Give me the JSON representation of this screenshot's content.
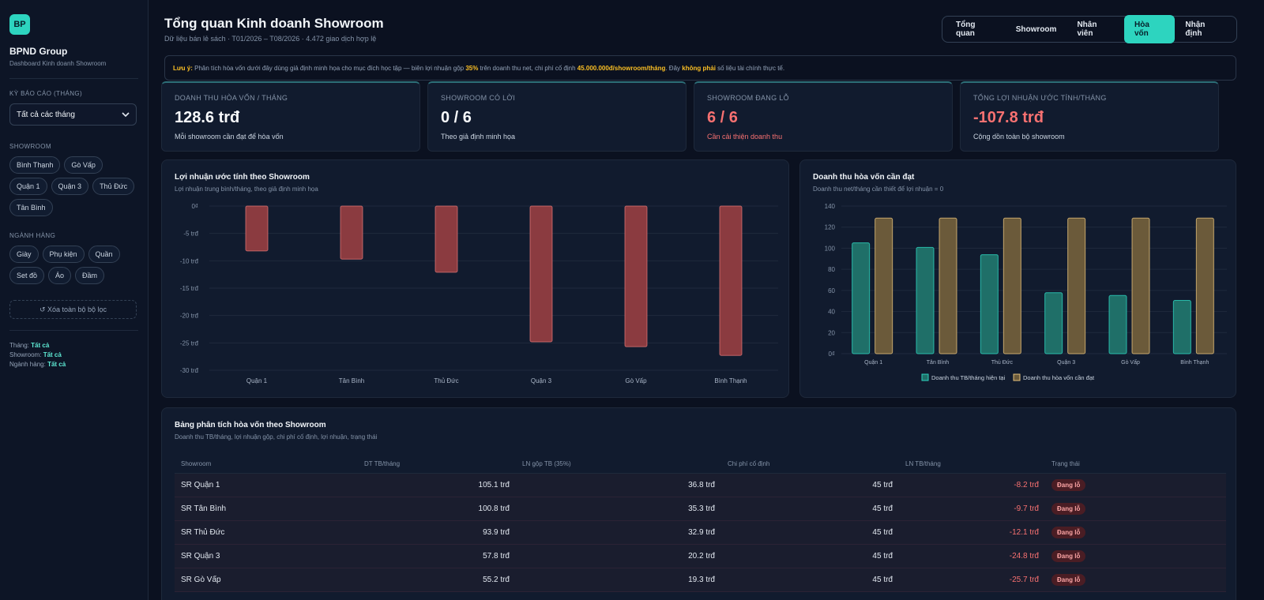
{
  "sidebar": {
    "logo": "BP",
    "brand": "BPND Group",
    "brand_sub": "Dashboard Kinh doanh Showroom",
    "period_label": "KỲ BÁO CÁO (THÁNG)",
    "period_value": "Tất cả các tháng",
    "showroom_label": "SHOWROOM",
    "showrooms": [
      "Bình Thạnh",
      "Gò Vấp",
      "Quận 1",
      "Quận 3",
      "Thủ Đức",
      "Tân Bình"
    ],
    "category_label": "NGÀNH HÀNG",
    "categories": [
      "Giày",
      "Phụ kiện",
      "Quần",
      "Set đồ",
      "Áo",
      "Đầm"
    ],
    "clear_label": "↺ Xóa toàn bộ bộ lọc",
    "summary": [
      {
        "label": "Tháng:",
        "value": "Tất cả"
      },
      {
        "label": "Showroom:",
        "value": "Tất cả"
      },
      {
        "label": "Ngành hàng:",
        "value": "Tất cả"
      }
    ]
  },
  "header": {
    "title": "Tổng quan Kinh doanh Showroom",
    "subtitle": "Dữ liệu bán lẻ sách · T01/2026 – T08/2026 · 4.472 giao dịch hợp lệ",
    "tabs": [
      "Tổng quan",
      "Showroom",
      "Nhân viên",
      "Hòa vốn",
      "Nhận định"
    ],
    "active_tab": "Hòa vốn"
  },
  "note": {
    "lead": "Lưu ý:",
    "text1": " Phân tích hòa vốn dưới đây dùng giả định minh họa cho mục đích học tập — biên lợi nhuận gộp ",
    "margin": "35%",
    "text2": " trên doanh thu net, chi phí cố định ",
    "fixed": "45.000.000đ/showroom/tháng",
    "text3": ". Đây ",
    "emph": "không phải",
    "text4": " số liệu tài chính thực tế."
  },
  "kpis": [
    {
      "label": "DOANH THU HÒA VỐN / THÁNG",
      "value": "128.6 trđ",
      "sub": "Mỗi showroom cần đạt để hòa vốn",
      "alert": false
    },
    {
      "label": "SHOWROOM CÓ LỜI",
      "value": "0 / 6",
      "sub": "Theo giả định minh họa",
      "alert": false
    },
    {
      "label": "SHOWROOM ĐANG LỖ",
      "value": "6 / 6",
      "sub": "Cần cải thiện doanh thu",
      "alert": true
    },
    {
      "label": "TỔNG LỢI NHUẬN ƯỚC TÍNH/THÁNG",
      "value": "-107.8 trđ",
      "sub": "Cộng dồn toàn bộ showroom",
      "alert": true
    }
  ],
  "profit_chart": {
    "title": "Lợi nhuận ước tính theo Showroom",
    "subtitle": "Lợi nhuận trung bình/tháng, theo giả định minh họa"
  },
  "breakeven_chart": {
    "title": "Doanh thu hòa vốn cần đạt",
    "subtitle": "Doanh thu net/tháng cần thiết để lợi nhuận = 0"
  },
  "chart_data": [
    {
      "type": "bar",
      "title": "Lợi nhuận ước tính theo Showroom",
      "categories": [
        "Quận 1",
        "Tân Bình",
        "Thủ Đức",
        "Quận 3",
        "Gò Vấp",
        "Bình Thạnh"
      ],
      "values": [
        -8.2,
        -9.7,
        -12.1,
        -24.8,
        -25.7,
        -27.3
      ],
      "ylim": [
        -30,
        0
      ],
      "yticks": [
        "0₫",
        "-5 trđ",
        "-10 trđ",
        "-15 trđ",
        "-20 trđ",
        "-25 trđ",
        "-30 trđ"
      ],
      "grid": true,
      "color": "#8b3b40"
    },
    {
      "type": "bar",
      "title": "Doanh thu hòa vốn cần đạt",
      "categories": [
        "Quận 1",
        "Tân Bình",
        "Thủ Đức",
        "Quận 3",
        "Gò Vấp",
        "Bình Thạnh"
      ],
      "series": [
        {
          "name": "Doanh thu TB/tháng hiện tại",
          "values": [
            105.1,
            100.8,
            93.9,
            57.8,
            55.2,
            50.5
          ],
          "color": "#1f6f68"
        },
        {
          "name": "Doanh thu hòa vốn cần đạt",
          "values": [
            128.6,
            128.6,
            128.6,
            128.6,
            128.6,
            128.6
          ],
          "color": "#6b5a3a"
        }
      ],
      "ylim": [
        0,
        140
      ],
      "yticks": [
        "0₫",
        "20",
        "40",
        "60",
        "80",
        "100",
        "120",
        "140"
      ],
      "grid": true,
      "legend": "bottom"
    }
  ],
  "table": {
    "title": "Bảng phân tích hòa vốn theo Showroom",
    "subtitle": "Doanh thu TB/tháng, lợi nhuận gộp, chi phí cố định, lợi nhuận, trạng thái",
    "headers": [
      "Showroom",
      "DT TB/tháng",
      "LN gộp TB (35%)",
      "Chi phí cố định",
      "LN TB/tháng",
      "Trạng thái"
    ],
    "rows": [
      [
        "SR Quận 1",
        "105.1 trđ",
        "36.8 trđ",
        "45 trđ",
        "-8.2 trđ",
        "Đang lỗ"
      ],
      [
        "SR Tân Bình",
        "100.8 trđ",
        "35.3 trđ",
        "45 trđ",
        "-9.7 trđ",
        "Đang lỗ"
      ],
      [
        "SR Thủ Đức",
        "93.9 trđ",
        "32.9 trđ",
        "45 trđ",
        "-12.1 trđ",
        "Đang lỗ"
      ],
      [
        "SR Quận 3",
        "57.8 trđ",
        "20.2 trđ",
        "45 trđ",
        "-24.8 trđ",
        "Đang lỗ"
      ],
      [
        "SR Gò Vấp",
        "55.2 trđ",
        "19.3 trđ",
        "45 trđ",
        "-25.7 trđ",
        "Đang lỗ"
      ]
    ]
  },
  "icons": {
    "select_caret": "chevron-down-icon"
  }
}
